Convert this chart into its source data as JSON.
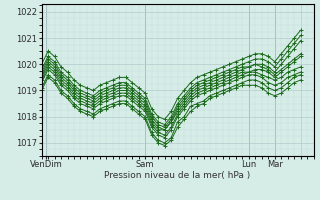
{
  "title": "",
  "xlabel": "Pression niveau de la mer( hPa )",
  "ylabel": "",
  "ylim": [
    1016.5,
    1022.3
  ],
  "xlim": [
    0,
    126
  ],
  "yticks": [
    1017,
    1018,
    1019,
    1020,
    1021,
    1022
  ],
  "xtick_positions": [
    2,
    48,
    96,
    108,
    120
  ],
  "xtick_labels": [
    "VenDim",
    "Sam",
    "Lun",
    "Mar",
    ""
  ],
  "background_color": "#d6ece7",
  "grid_color_major": "#b0cccc",
  "grid_color_minor": "#c4dddd",
  "line_color": "#1a6b1a",
  "vline_color": "#8899aa",
  "series": [
    [
      0,
      1019.5,
      3,
      1020.0,
      6,
      1019.8,
      9,
      1019.4,
      12,
      1019.2,
      15,
      1018.9,
      18,
      1018.7,
      21,
      1018.6,
      24,
      1018.5,
      27,
      1018.7,
      30,
      1018.8,
      33,
      1018.9,
      36,
      1019.0,
      39,
      1019.0,
      42,
      1018.8,
      45,
      1018.6,
      48,
      1018.4,
      51,
      1017.8,
      54,
      1017.5,
      57,
      1017.5,
      60,
      1017.8,
      63,
      1018.2,
      66,
      1018.5,
      69,
      1018.8,
      72,
      1019.0,
      75,
      1019.1,
      78,
      1019.2,
      81,
      1019.3,
      84,
      1019.4,
      87,
      1019.5,
      90,
      1019.6,
      93,
      1019.7,
      96,
      1019.7,
      99,
      1019.7,
      102,
      1019.6,
      105,
      1019.5,
      108,
      1019.4,
      111,
      1019.5,
      114,
      1019.7,
      117,
      1019.8,
      120,
      1019.9
    ],
    [
      0,
      1019.3,
      3,
      1019.8,
      6,
      1019.6,
      9,
      1019.2,
      12,
      1019.0,
      15,
      1018.7,
      18,
      1018.5,
      21,
      1018.4,
      24,
      1018.3,
      27,
      1018.5,
      30,
      1018.6,
      33,
      1018.7,
      36,
      1018.8,
      39,
      1018.8,
      42,
      1018.6,
      45,
      1018.4,
      48,
      1018.2,
      51,
      1017.6,
      54,
      1017.3,
      57,
      1017.2,
      60,
      1017.5,
      63,
      1018.0,
      66,
      1018.3,
      69,
      1018.6,
      72,
      1018.8,
      75,
      1018.9,
      78,
      1019.0,
      81,
      1019.1,
      84,
      1019.2,
      87,
      1019.3,
      90,
      1019.4,
      93,
      1019.5,
      96,
      1019.6,
      99,
      1019.6,
      102,
      1019.5,
      105,
      1019.3,
      108,
      1019.2,
      111,
      1019.3,
      114,
      1019.5,
      117,
      1019.6,
      120,
      1019.7
    ],
    [
      0,
      1019.1,
      3,
      1019.6,
      6,
      1019.4,
      9,
      1019.0,
      12,
      1018.8,
      15,
      1018.5,
      18,
      1018.3,
      21,
      1018.2,
      24,
      1018.1,
      27,
      1018.3,
      30,
      1018.4,
      33,
      1018.5,
      36,
      1018.6,
      39,
      1018.6,
      42,
      1018.4,
      45,
      1018.2,
      48,
      1018.0,
      51,
      1017.4,
      54,
      1017.1,
      57,
      1017.0,
      60,
      1017.2,
      63,
      1017.8,
      66,
      1018.0,
      69,
      1018.4,
      72,
      1018.5,
      75,
      1018.6,
      78,
      1018.8,
      81,
      1018.9,
      84,
      1019.0,
      87,
      1019.1,
      90,
      1019.2,
      93,
      1019.3,
      96,
      1019.4,
      99,
      1019.4,
      102,
      1019.3,
      105,
      1019.1,
      108,
      1019.0,
      111,
      1019.1,
      114,
      1019.3,
      117,
      1019.5,
      120,
      1019.6
    ],
    [
      0,
      1019.7,
      3,
      1020.2,
      6,
      1020.0,
      9,
      1019.6,
      12,
      1019.4,
      15,
      1019.1,
      18,
      1018.9,
      21,
      1018.8,
      24,
      1018.7,
      27,
      1018.9,
      30,
      1019.0,
      33,
      1019.1,
      36,
      1019.2,
      39,
      1019.2,
      42,
      1019.0,
      45,
      1018.8,
      48,
      1018.6,
      51,
      1018.0,
      54,
      1017.7,
      57,
      1017.6,
      60,
      1017.9,
      63,
      1018.4,
      66,
      1018.7,
      69,
      1019.0,
      72,
      1019.2,
      75,
      1019.3,
      78,
      1019.4,
      81,
      1019.5,
      84,
      1019.6,
      87,
      1019.7,
      90,
      1019.8,
      93,
      1019.9,
      96,
      1019.9,
      99,
      1020.0,
      102,
      1019.9,
      105,
      1019.8,
      108,
      1019.6,
      111,
      1019.8,
      114,
      1020.0,
      117,
      1020.2,
      120,
      1020.4
    ],
    [
      0,
      1019.0,
      3,
      1019.5,
      6,
      1019.3,
      9,
      1018.9,
      12,
      1018.7,
      15,
      1018.4,
      18,
      1018.2,
      21,
      1018.1,
      24,
      1018.0,
      27,
      1018.2,
      30,
      1018.3,
      33,
      1018.4,
      36,
      1018.5,
      39,
      1018.5,
      42,
      1018.3,
      45,
      1018.1,
      48,
      1017.9,
      51,
      1017.3,
      54,
      1017.0,
      57,
      1016.9,
      60,
      1017.1,
      63,
      1017.6,
      66,
      1017.9,
      69,
      1018.2,
      72,
      1018.4,
      75,
      1018.5,
      78,
      1018.7,
      81,
      1018.8,
      84,
      1018.9,
      87,
      1019.0,
      90,
      1019.1,
      93,
      1019.2,
      96,
      1019.2,
      99,
      1019.2,
      102,
      1019.1,
      105,
      1018.9,
      108,
      1018.8,
      111,
      1018.9,
      114,
      1019.1,
      117,
      1019.3,
      120,
      1019.4
    ],
    [
      0,
      1020.0,
      3,
      1020.5,
      6,
      1020.3,
      9,
      1019.9,
      12,
      1019.7,
      15,
      1019.4,
      18,
      1019.2,
      21,
      1019.1,
      24,
      1019.0,
      27,
      1019.2,
      30,
      1019.3,
      33,
      1019.4,
      36,
      1019.5,
      39,
      1019.5,
      42,
      1019.3,
      45,
      1019.1,
      48,
      1018.9,
      51,
      1018.3,
      54,
      1018.0,
      57,
      1017.9,
      60,
      1018.2,
      63,
      1018.7,
      66,
      1019.0,
      69,
      1019.3,
      72,
      1019.5,
      75,
      1019.6,
      78,
      1019.7,
      81,
      1019.8,
      84,
      1019.9,
      87,
      1020.0,
      90,
      1020.1,
      93,
      1020.2,
      96,
      1020.3,
      99,
      1020.4,
      102,
      1020.4,
      105,
      1020.3,
      108,
      1020.1,
      111,
      1020.4,
      114,
      1020.7,
      117,
      1021.0,
      120,
      1021.3
    ],
    [
      0,
      1019.8,
      3,
      1020.3,
      6,
      1020.1,
      9,
      1019.7,
      12,
      1019.5,
      15,
      1019.2,
      18,
      1019.0,
      21,
      1018.9,
      24,
      1018.8,
      27,
      1019.0,
      30,
      1019.1,
      33,
      1019.2,
      36,
      1019.3,
      39,
      1019.3,
      42,
      1019.1,
      45,
      1018.9,
      48,
      1018.7,
      51,
      1018.1,
      54,
      1017.8,
      57,
      1017.7,
      60,
      1018.0,
      63,
      1018.5,
      66,
      1018.8,
      69,
      1019.1,
      72,
      1019.3,
      75,
      1019.4,
      78,
      1019.5,
      81,
      1019.6,
      84,
      1019.7,
      87,
      1019.8,
      90,
      1019.9,
      93,
      1020.0,
      96,
      1020.1,
      99,
      1020.2,
      102,
      1020.2,
      105,
      1020.1,
      108,
      1019.9,
      111,
      1020.2,
      114,
      1020.5,
      117,
      1020.8,
      120,
      1021.1
    ],
    [
      0,
      1019.6,
      3,
      1020.1,
      6,
      1019.9,
      9,
      1019.5,
      12,
      1019.3,
      15,
      1019.0,
      18,
      1018.8,
      21,
      1018.7,
      24,
      1018.6,
      27,
      1018.8,
      30,
      1018.9,
      33,
      1019.0,
      36,
      1019.1,
      39,
      1019.1,
      42,
      1018.9,
      45,
      1018.7,
      48,
      1018.5,
      51,
      1017.9,
      54,
      1017.6,
      57,
      1017.5,
      60,
      1017.8,
      63,
      1018.3,
      66,
      1018.6,
      69,
      1018.9,
      72,
      1019.1,
      75,
      1019.2,
      78,
      1019.3,
      81,
      1019.4,
      84,
      1019.5,
      87,
      1019.6,
      90,
      1019.7,
      93,
      1019.8,
      96,
      1019.9,
      99,
      1020.0,
      102,
      1020.0,
      105,
      1019.9,
      108,
      1019.7,
      111,
      1020.0,
      114,
      1020.3,
      117,
      1020.6,
      120,
      1020.9
    ],
    [
      0,
      1019.4,
      3,
      1019.9,
      6,
      1019.7,
      9,
      1019.3,
      12,
      1019.1,
      15,
      1018.8,
      18,
      1018.6,
      21,
      1018.5,
      24,
      1018.4,
      27,
      1018.6,
      30,
      1018.7,
      33,
      1018.8,
      36,
      1018.9,
      39,
      1018.9,
      42,
      1018.7,
      45,
      1018.5,
      48,
      1018.3,
      51,
      1017.7,
      54,
      1017.4,
      57,
      1017.3,
      60,
      1017.6,
      63,
      1018.1,
      66,
      1018.4,
      69,
      1018.7,
      72,
      1018.9,
      75,
      1019.0,
      78,
      1019.1,
      81,
      1019.2,
      84,
      1019.3,
      87,
      1019.4,
      90,
      1019.5,
      93,
      1019.6,
      96,
      1019.7,
      99,
      1019.8,
      102,
      1019.8,
      105,
      1019.7,
      108,
      1019.5,
      111,
      1019.7,
      114,
      1019.9,
      117,
      1020.1,
      120,
      1020.3
    ]
  ]
}
